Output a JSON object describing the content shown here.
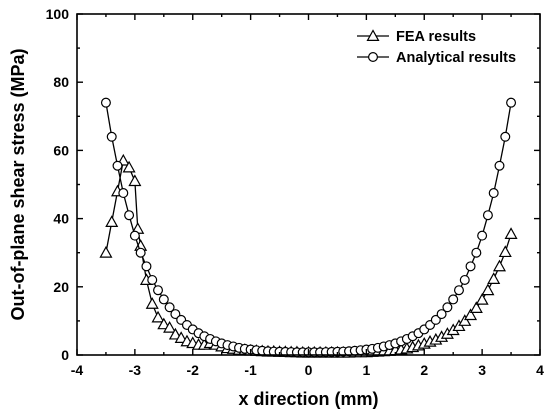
{
  "chart_data": {
    "type": "line",
    "xlabel": "x direction (mm)",
    "ylabel": "Out-of-plane shear stress (MPa)",
    "xlim": [
      -4,
      4
    ],
    "ylim": [
      0,
      100
    ],
    "x_ticks": [
      "-4",
      "-3",
      "-2",
      "-1",
      "0",
      "1",
      "2",
      "3",
      "4"
    ],
    "y_ticks": [
      "0",
      "20",
      "40",
      "60",
      "80",
      "100"
    ],
    "legend_position": "top-right",
    "grid": false,
    "series": [
      {
        "name": "FEA results",
        "marker": "triangle",
        "x": [
          -3.5,
          -3.4,
          -3.3,
          -3.2,
          -3.1,
          -3.0,
          -2.95,
          -2.9,
          -2.8,
          -2.7,
          -2.6,
          -2.5,
          -2.4,
          -2.3,
          -2.2,
          -2.1,
          -2.0,
          -1.9,
          -1.8,
          -1.7,
          -1.6,
          -1.5,
          -1.4,
          -1.3,
          -1.2,
          -1.1,
          -1.0,
          -0.9,
          -0.8,
          -0.7,
          -0.6,
          -0.5,
          -0.4,
          -0.3,
          -0.2,
          -0.1,
          0.0,
          0.1,
          0.2,
          0.3,
          0.4,
          0.5,
          0.6,
          0.7,
          0.8,
          0.9,
          1.0,
          1.1,
          1.2,
          1.3,
          1.4,
          1.5,
          1.6,
          1.7,
          1.8,
          1.9,
          2.0,
          2.1,
          2.2,
          2.3,
          2.4,
          2.5,
          2.6,
          2.7,
          2.8,
          2.9,
          3.0,
          3.1,
          3.2,
          3.3,
          3.4,
          3.5
        ],
        "y": [
          30,
          39,
          48,
          57,
          55,
          51,
          37,
          32,
          22,
          15,
          11,
          9,
          8,
          6,
          5,
          4,
          3.5,
          3,
          3,
          3.5,
          3,
          2.5,
          2,
          1.8,
          1.5,
          1.5,
          1.3,
          1.2,
          1.1,
          1.0,
          1.0,
          0.9,
          0.9,
          0.8,
          0.8,
          0.7,
          0.7,
          0.7,
          0.7,
          0.7,
          0.7,
          0.7,
          0.7,
          0.7,
          0.8,
          0.8,
          0.8,
          0.9,
          1.0,
          1.1,
          1.2,
          1.4,
          1.6,
          1.9,
          2.3,
          2.8,
          3.3,
          3.9,
          4.5,
          5.3,
          6.2,
          7.3,
          8.5,
          10,
          11.7,
          13.8,
          16.2,
          19,
          22.3,
          26,
          30.2,
          35.5
        ]
      },
      {
        "name": "Analytical results",
        "marker": "circle",
        "x": [
          -3.5,
          -3.4,
          -3.3,
          -3.2,
          -3.1,
          -3.0,
          -2.9,
          -2.8,
          -2.7,
          -2.6,
          -2.5,
          -2.4,
          -2.3,
          -2.2,
          -2.1,
          -2.0,
          -1.9,
          -1.8,
          -1.7,
          -1.6,
          -1.5,
          -1.4,
          -1.3,
          -1.2,
          -1.1,
          -1.0,
          -0.9,
          -0.8,
          -0.7,
          -0.6,
          -0.5,
          -0.4,
          -0.3,
          -0.2,
          -0.1,
          0.0,
          0.1,
          0.2,
          0.3,
          0.4,
          0.5,
          0.6,
          0.7,
          0.8,
          0.9,
          1.0,
          1.1,
          1.2,
          1.3,
          1.4,
          1.5,
          1.6,
          1.7,
          1.8,
          1.9,
          2.0,
          2.1,
          2.2,
          2.3,
          2.4,
          2.5,
          2.6,
          2.7,
          2.8,
          2.9,
          3.0,
          3.1,
          3.2,
          3.3,
          3.4,
          3.5
        ],
        "y": [
          74,
          64,
          55.5,
          47.5,
          41,
          35,
          30,
          26,
          22,
          19,
          16.3,
          14,
          12,
          10.3,
          8.8,
          7.5,
          6.4,
          5.5,
          4.7,
          4.0,
          3.4,
          2.9,
          2.5,
          2.1,
          1.8,
          1.6,
          1.4,
          1.25,
          1.1,
          1.0,
          0.95,
          0.9,
          0.85,
          0.8,
          0.8,
          0.8,
          0.8,
          0.8,
          0.85,
          0.9,
          0.95,
          1.0,
          1.1,
          1.25,
          1.4,
          1.6,
          1.8,
          2.1,
          2.5,
          2.9,
          3.4,
          4.0,
          4.7,
          5.5,
          6.4,
          7.5,
          8.8,
          10.3,
          12,
          14,
          16.3,
          19,
          22,
          26,
          30,
          35,
          41,
          47.5,
          55.5,
          64,
          74
        ]
      }
    ]
  }
}
